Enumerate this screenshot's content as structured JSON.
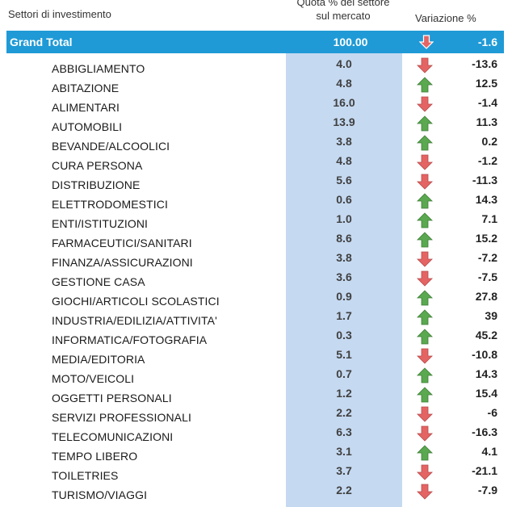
{
  "header": {
    "sector_label": "Settori di investimento",
    "share_label_line1": "Quota % del settore",
    "share_label_line2": "sul mercato",
    "variation_label": "Variazione %"
  },
  "grand_total": {
    "label": "Grand Total",
    "share": "100.00",
    "change": "-1.6",
    "trend": "down"
  },
  "rows": [
    {
      "label": "ABBIGLIAMENTO",
      "share": "4.0",
      "change": "-13.6",
      "trend": "down"
    },
    {
      "label": "ABITAZIONE",
      "share": "4.8",
      "change": "12.5",
      "trend": "up"
    },
    {
      "label": "ALIMENTARI",
      "share": "16.0",
      "change": "-1.4",
      "trend": "down"
    },
    {
      "label": "AUTOMOBILI",
      "share": "13.9",
      "change": "11.3",
      "trend": "up"
    },
    {
      "label": "BEVANDE/ALCOOLICI",
      "share": "3.8",
      "change": "0.2",
      "trend": "up"
    },
    {
      "label": "CURA PERSONA",
      "share": "4.8",
      "change": "-1.2",
      "trend": "down"
    },
    {
      "label": "DISTRIBUZIONE",
      "share": "5.6",
      "change": "-11.3",
      "trend": "down"
    },
    {
      "label": "ELETTRODOMESTICI",
      "share": "0.6",
      "change": "14.3",
      "trend": "up"
    },
    {
      "label": "ENTI/ISTITUZIONI",
      "share": "1.0",
      "change": "7.1",
      "trend": "up"
    },
    {
      "label": "FARMACEUTICI/SANITARI",
      "share": "8.6",
      "change": "15.2",
      "trend": "up"
    },
    {
      "label": "FINANZA/ASSICURAZIONI",
      "share": "3.8",
      "change": "-7.2",
      "trend": "down"
    },
    {
      "label": "GESTIONE CASA",
      "share": "3.6",
      "change": "-7.5",
      "trend": "down"
    },
    {
      "label": "GIOCHI/ARTICOLI SCOLASTICI",
      "share": "0.9",
      "change": "27.8",
      "trend": "up"
    },
    {
      "label": "INDUSTRIA/EDILIZIA/ATTIVITA'",
      "share": "1.7",
      "change": "39",
      "trend": "up"
    },
    {
      "label": "INFORMATICA/FOTOGRAFIA",
      "share": "0.3",
      "change": "45.2",
      "trend": "up"
    },
    {
      "label": "MEDIA/EDITORIA",
      "share": "5.1",
      "change": "-10.8",
      "trend": "down"
    },
    {
      "label": "MOTO/VEICOLI",
      "share": "0.7",
      "change": "14.3",
      "trend": "up"
    },
    {
      "label": "OGGETTI PERSONALI",
      "share": "1.2",
      "change": "15.4",
      "trend": "up"
    },
    {
      "label": "SERVIZI PROFESSIONALI",
      "share": "2.2",
      "change": "-6",
      "trend": "down"
    },
    {
      "label": "TELECOMUNICAZIONI",
      "share": "6.3",
      "change": "-16.3",
      "trend": "down"
    },
    {
      "label": "TEMPO LIBERO",
      "share": "3.1",
      "change": "4.1",
      "trend": "up"
    },
    {
      "label": "TOILETRIES",
      "share": "3.7",
      "change": "-21.1",
      "trend": "down"
    },
    {
      "label": "TURISMO/VIAGGI",
      "share": "2.2",
      "change": "-7.9",
      "trend": "down"
    }
  ],
  "colors": {
    "up": "#5aa850",
    "down": "#e46464",
    "header_bg": "#1f9ad6",
    "column_bg": "#c5d9f1"
  },
  "icons": {
    "up": "arrow-up-icon",
    "down": "arrow-down-icon"
  }
}
